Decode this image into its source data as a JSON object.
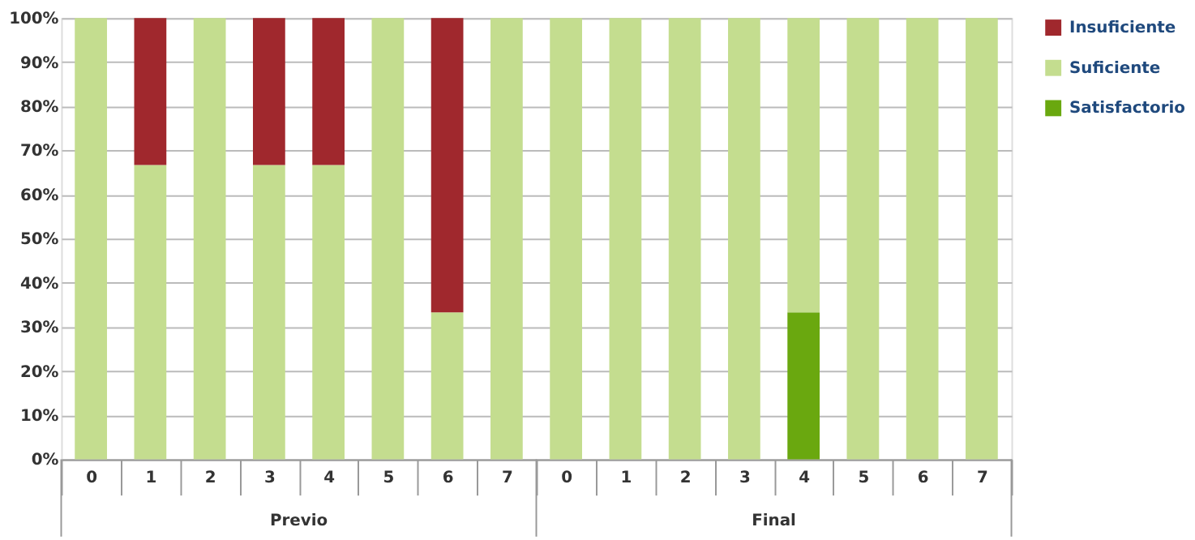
{
  "chart_data": {
    "type": "bar",
    "stacked": true,
    "categories": [
      "0",
      "1",
      "2",
      "3",
      "4",
      "5",
      "6",
      "7",
      "0",
      "1",
      "2",
      "3",
      "4",
      "5",
      "6",
      "7"
    ],
    "series": [
      {
        "name": "Satisfactorio",
        "color": "#6aa80f",
        "values": [
          null,
          null,
          null,
          null,
          null,
          null,
          null,
          null,
          null,
          null,
          null,
          null,
          33.3,
          null,
          null,
          null
        ]
      },
      {
        "name": "Suficiente",
        "color": "#c4dd8f",
        "values": [
          100,
          66.7,
          100,
          66.7,
          66.7,
          100,
          33.3,
          100,
          100,
          100,
          100,
          100,
          66.7,
          100,
          100,
          100
        ]
      },
      {
        "name": "Insuficiente",
        "color": "#a0282d",
        "values": [
          null,
          33.3,
          null,
          33.3,
          33.3,
          null,
          66.7,
          null,
          null,
          null,
          null,
          null,
          null,
          null,
          null,
          null
        ]
      }
    ],
    "ylim": [
      0,
      100
    ],
    "yticks": [
      {
        "value": 0,
        "label": "0%"
      },
      {
        "value": 10,
        "label": "10%"
      },
      {
        "value": 20,
        "label": "20%"
      },
      {
        "value": 30,
        "label": "30%"
      },
      {
        "value": 40,
        "label": "40%"
      },
      {
        "value": 50,
        "label": "50%"
      },
      {
        "value": 60,
        "label": "60%"
      },
      {
        "value": 70,
        "label": "70%"
      },
      {
        "value": 80,
        "label": "80%"
      },
      {
        "value": 90,
        "label": "90%"
      },
      {
        "value": 100,
        "label": "100%"
      }
    ],
    "grid": "y",
    "legend": "right",
    "annotations": [
      "Previo",
      "Final"
    ]
  }
}
